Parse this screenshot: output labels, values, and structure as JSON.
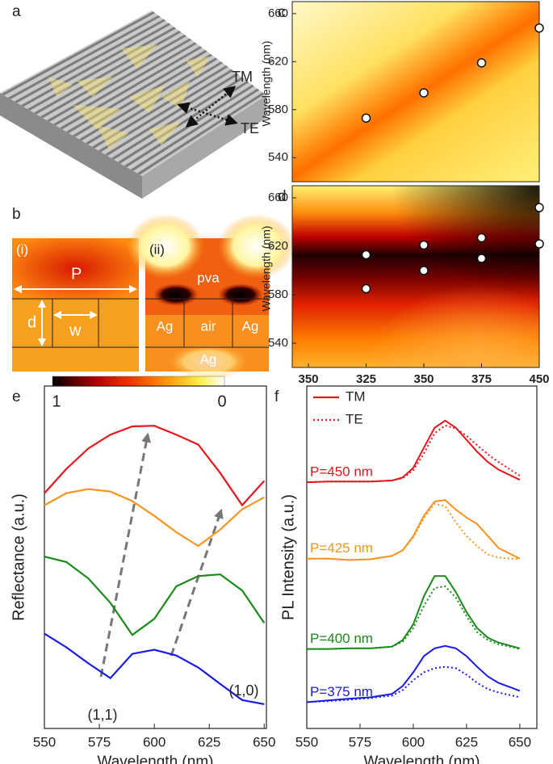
{
  "panels": {
    "a": {
      "label": "a",
      "pol_tm": "TM",
      "pol_te": "TE"
    },
    "b": {
      "label": "b",
      "i": {
        "tag": "(i)",
        "period": "P",
        "depth": "d",
        "width": "w"
      },
      "ii": {
        "tag": "(ii)",
        "top": "pva",
        "left": "Ag",
        "center": "air",
        "right": "Ag",
        "bottom": "Ag"
      },
      "colorbar": {
        "max": 1,
        "min": 0
      }
    }
  },
  "chart_data": [
    {
      "type": "heatmap-scatter",
      "label": "c",
      "ylabel": "Wavelength (nm)",
      "xlim": [
        343,
        450
      ],
      "ylim": [
        520,
        670
      ],
      "yticks": [
        540,
        580,
        620,
        660
      ],
      "x": [
        375,
        400,
        425,
        450
      ],
      "values": [
        573,
        594,
        619,
        648
      ]
    },
    {
      "type": "heatmap-scatter",
      "label": "d",
      "ylabel": "Wavelength (nm)",
      "xlim": [
        343,
        450
      ],
      "ylim": [
        520,
        670
      ],
      "yticks": [
        540,
        580,
        620,
        660
      ],
      "xticks": [
        350,
        {
          "value": 375,
          "label": "325"
        },
        {
          "value": 400,
          "label": "350"
        },
        {
          "value": 425,
          "label": "375"
        },
        450
      ],
      "x": [
        375,
        375,
        400,
        400,
        425,
        425,
        450,
        450
      ],
      "values": [
        585,
        613,
        600,
        621,
        610,
        627,
        622,
        652
      ]
    },
    {
      "type": "line",
      "label": "e",
      "xlabel": "Wavelength (nm)",
      "ylabel": "Reflectance (a.u.)",
      "xlim": [
        550,
        651
      ],
      "ylim": [
        0,
        10
      ],
      "xticks": [
        550,
        575,
        600,
        625,
        650
      ],
      "x": [
        550,
        560,
        570,
        580,
        590,
        600,
        610,
        620,
        630,
        640,
        650
      ],
      "series": [
        {
          "color": "#e8141c",
          "values": [
            6.87,
            7.58,
            8.18,
            8.58,
            8.82,
            8.84,
            8.58,
            8.29,
            7.46,
            6.52,
            7.23
          ]
        },
        {
          "color": "#f7941d",
          "values": [
            6.52,
            6.87,
            6.99,
            6.92,
            6.64,
            6.21,
            5.73,
            5.33,
            5.81,
            6.4,
            6.75
          ]
        },
        {
          "color": "#1a8a1a",
          "values": [
            5.02,
            4.86,
            4.38,
            3.67,
            2.73,
            3.2,
            4.15,
            4.45,
            4.5,
            4.03,
            3.08
          ]
        },
        {
          "color": "#1a1ae6",
          "values": [
            2.77,
            2.37,
            1.9,
            1.47,
            2.18,
            2.3,
            2.13,
            1.78,
            1.3,
            0.83,
            0.71
          ]
        }
      ],
      "annotations": [
        "(1,1)",
        "(1,0)"
      ]
    },
    {
      "type": "line-pair",
      "label": "f",
      "xlabel": "Wavelength (nm)",
      "ylabel": "PL Intensity (a.u.)",
      "xlim": [
        550,
        658
      ],
      "ylim": [
        0,
        10
      ],
      "xticks": [
        550,
        575,
        600,
        625,
        650
      ],
      "legend": [
        "TM",
        "TE"
      ],
      "x": [
        550,
        560,
        570,
        580,
        590,
        595,
        600,
        605,
        610,
        615,
        620,
        625,
        630,
        635,
        640,
        650
      ],
      "groups": [
        {
          "label": "P=450 nm",
          "color": "#e8141c",
          "tm": [
            7.19,
            7.21,
            7.21,
            7.21,
            7.24,
            7.33,
            7.61,
            8.2,
            8.78,
            8.99,
            8.78,
            8.43,
            8.08,
            7.78,
            7.56,
            7.26
          ],
          "te": [
            7.19,
            7.21,
            7.21,
            7.21,
            7.24,
            7.31,
            7.54,
            8.03,
            8.62,
            8.85,
            8.76,
            8.55,
            8.27,
            8.01,
            7.78,
            7.38
          ]
        },
        {
          "label": "P=425 nm",
          "color": "#f7941d",
          "tm": [
            4.96,
            4.96,
            4.92,
            4.94,
            5.04,
            5.2,
            5.62,
            6.21,
            6.63,
            6.67,
            6.39,
            6.16,
            5.97,
            5.62,
            5.27,
            4.96
          ],
          "te": [
            4.96,
            4.96,
            4.92,
            4.94,
            5.04,
            5.2,
            5.57,
            6.14,
            6.56,
            6.49,
            6.02,
            5.62,
            5.32,
            5.08,
            4.99,
            4.94
          ]
        },
        {
          "label": "P=400 nm",
          "color": "#1a8a1a",
          "tm": [
            2.32,
            2.32,
            2.34,
            2.34,
            2.39,
            2.58,
            3.04,
            3.86,
            4.45,
            4.45,
            3.98,
            3.4,
            2.93,
            2.65,
            2.51,
            2.34
          ],
          "te": [
            2.32,
            2.32,
            2.34,
            2.34,
            2.39,
            2.53,
            2.93,
            3.58,
            4.1,
            4.15,
            3.82,
            3.28,
            2.81,
            2.58,
            2.46,
            2.32
          ]
        },
        {
          "label": "P=375 nm",
          "color": "#1a1ae6",
          "tm": [
            0.77,
            0.82,
            0.87,
            0.91,
            1.01,
            1.24,
            1.64,
            2.11,
            2.34,
            2.41,
            2.34,
            2.11,
            1.8,
            1.52,
            1.33,
            1.1
          ],
          "te": [
            0.77,
            0.8,
            0.84,
            0.89,
            0.96,
            1.12,
            1.41,
            1.64,
            1.76,
            1.8,
            1.76,
            1.57,
            1.33,
            1.15,
            1.05,
            0.91
          ]
        }
      ]
    }
  ]
}
